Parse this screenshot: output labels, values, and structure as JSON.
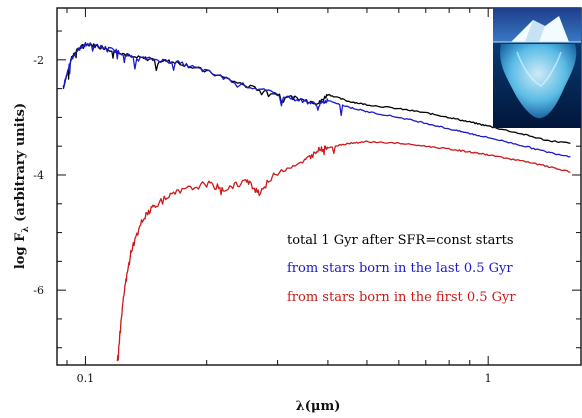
{
  "chart_data": {
    "type": "line",
    "xlabel": "λ(μm)",
    "ylabel": "log F",
    "ylabel_subscript": "λ",
    "ylabel_units": "(arbitrary units)",
    "xscale": "log",
    "xlim": [
      0.085,
      1.7
    ],
    "ylim": [
      -7.3,
      -1.1
    ],
    "x_tick_labels": [
      {
        "value": 0.1,
        "label": "0.1"
      },
      {
        "value": 1,
        "label": "1"
      }
    ],
    "y_tick_labels": [
      {
        "value": -2,
        "label": "-2"
      },
      {
        "value": -4,
        "label": "-4"
      },
      {
        "value": -6,
        "label": "-6"
      }
    ],
    "legend_position": "right",
    "series": [
      {
        "name": "total 1 Gyr after SFR=const starts",
        "color": "#000000",
        "x": [
          0.088,
          0.092,
          0.095,
          0.1,
          0.11,
          0.12,
          0.13,
          0.15,
          0.17,
          0.2,
          0.25,
          0.3,
          0.35,
          0.38,
          0.4,
          0.45,
          0.5,
          0.6,
          0.7,
          0.8,
          0.9,
          1.0,
          1.2,
          1.4,
          1.6
        ],
        "y": [
          -2.5,
          -2.0,
          -1.85,
          -1.72,
          -1.78,
          -1.85,
          -1.95,
          -2.0,
          -2.05,
          -2.2,
          -2.45,
          -2.6,
          -2.7,
          -2.75,
          -2.6,
          -2.72,
          -2.78,
          -2.85,
          -2.92,
          -3.0,
          -3.08,
          -3.15,
          -3.28,
          -3.4,
          -3.45
        ]
      },
      {
        "name": "from stars born in the last 0.5 Gyr",
        "color": "#1a1acc",
        "x": [
          0.088,
          0.092,
          0.095,
          0.1,
          0.11,
          0.12,
          0.13,
          0.15,
          0.17,
          0.2,
          0.25,
          0.3,
          0.35,
          0.38,
          0.4,
          0.45,
          0.5,
          0.6,
          0.7,
          0.8,
          0.9,
          1.0,
          1.2,
          1.4,
          1.6
        ],
        "y": [
          -2.5,
          -2.0,
          -1.85,
          -1.72,
          -1.78,
          -1.85,
          -1.95,
          -2.0,
          -2.05,
          -2.2,
          -2.45,
          -2.6,
          -2.72,
          -2.78,
          -2.7,
          -2.82,
          -2.9,
          -3.0,
          -3.1,
          -3.2,
          -3.28,
          -3.35,
          -3.48,
          -3.6,
          -3.68
        ]
      },
      {
        "name": "from stars born in the first 0.5 Gyr",
        "color": "#cc1a1a",
        "x": [
          0.12,
          0.125,
          0.13,
          0.14,
          0.15,
          0.17,
          0.2,
          0.22,
          0.25,
          0.27,
          0.3,
          0.35,
          0.38,
          0.4,
          0.45,
          0.5,
          0.6,
          0.7,
          0.8,
          0.9,
          1.0,
          1.2,
          1.4,
          1.6
        ],
        "y": [
          -7.2,
          -6.0,
          -5.3,
          -4.7,
          -4.5,
          -4.3,
          -4.15,
          -4.25,
          -4.1,
          -4.3,
          -3.95,
          -3.75,
          -3.55,
          -3.52,
          -3.45,
          -3.42,
          -3.45,
          -3.5,
          -3.55,
          -3.6,
          -3.65,
          -3.75,
          -3.85,
          -3.95
        ]
      }
    ]
  },
  "inset": {
    "image_name": "iceberg-image"
  }
}
